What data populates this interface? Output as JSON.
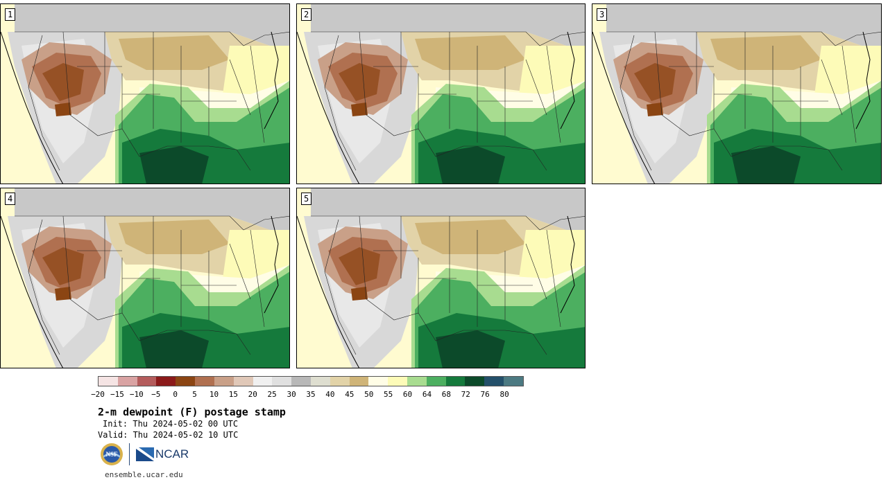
{
  "panels": [
    {
      "number": "1"
    },
    {
      "number": "2"
    },
    {
      "number": "3"
    },
    {
      "number": "4"
    },
    {
      "number": "5"
    }
  ],
  "colorbar": {
    "colors": [
      "#f5e4e4",
      "#d9a3a3",
      "#b45c5c",
      "#8b1a1a",
      "#8b4513",
      "#b07050",
      "#c9a088",
      "#e0c8b8",
      "#f0f0f0",
      "#e0e0e0",
      "#b8b8b8",
      "#deded0",
      "#e2d3a8",
      "#cfb478",
      "#fffde6",
      "#fdfbb8",
      "#a8dc90",
      "#4caf60",
      "#157a3c",
      "#0c4a2a",
      "#24506a",
      "#4c7a82"
    ],
    "ticks": [
      "−20",
      "−15",
      "−10",
      "−5",
      "0",
      "5",
      "10",
      "15",
      "20",
      "25",
      "30",
      "35",
      "40",
      "45",
      "50",
      "55",
      "60",
      "64",
      "68",
      "72",
      "76",
      "80"
    ]
  },
  "title": "2-m dewpoint (F) postage stamp",
  "init": "Init: Thu 2024-05-02 00 UTC",
  "valid": "Valid: Thu 2024-05-02 10 UTC",
  "logos": {
    "nsf": "NSF",
    "ncar": "NCAR"
  },
  "url": "ensemble.ucar.edu"
}
